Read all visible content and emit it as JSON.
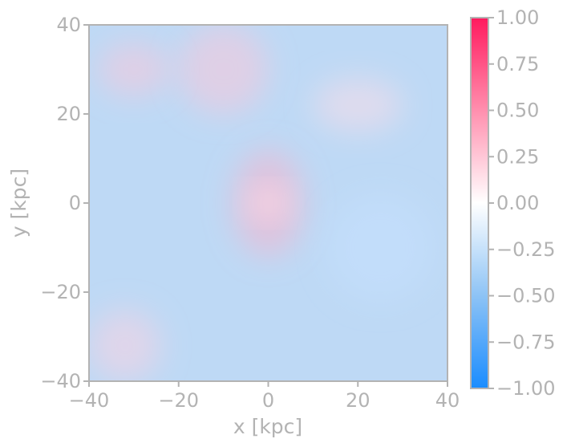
{
  "chart_data": {
    "type": "heatmap",
    "title": "",
    "xlabel": "x [kpc]",
    "ylabel": "y [kpc]",
    "xlim": [
      -40,
      40
    ],
    "ylim": [
      -40,
      40
    ],
    "x_ticks": [
      -40,
      -20,
      0,
      20,
      40
    ],
    "x_tick_labels": [
      "−40",
      "−20",
      "0",
      "20",
      "40"
    ],
    "y_ticks": [
      -40,
      -20,
      0,
      20,
      40
    ],
    "y_tick_labels": [
      "−40",
      "−20",
      "0",
      "20",
      "40"
    ],
    "grid": false,
    "colorbar": {
      "range": [
        -1.0,
        1.0
      ],
      "ticks": [
        1.0,
        0.75,
        0.5,
        0.25,
        0.0,
        -0.25,
        -0.5,
        -0.75,
        -1.0
      ],
      "tick_labels": [
        "1.00",
        "0.75",
        "0.50",
        "0.25",
        "0.00",
        "−0.25",
        "−0.50",
        "−0.75",
        "−1.00"
      ],
      "colors": {
        "max": "#ff1a5e",
        "mid": "#ffffff",
        "min": "#1a8cff"
      }
    },
    "features": [
      {
        "cx": 0,
        "cy": 0,
        "sx": 4,
        "sy": 3,
        "value": 0.0
      },
      {
        "cx": 0,
        "cy": 0,
        "sx": 8,
        "sy": 12,
        "value": 0.35
      },
      {
        "cx": -10,
        "cy": 30,
        "sx": 10,
        "sy": 10,
        "value": 0.25
      },
      {
        "cx": -30,
        "cy": 30,
        "sx": 8,
        "sy": 6,
        "value": 0.25
      },
      {
        "cx": 20,
        "cy": 22,
        "sx": 10,
        "sy": 6,
        "value": 0.15
      },
      {
        "cx": -32,
        "cy": -32,
        "sx": 8,
        "sy": 8,
        "value": 0.2
      },
      {
        "cx": 25,
        "cy": -10,
        "sx": 12,
        "sy": 12,
        "value": -0.25
      }
    ],
    "background_value": -0.3
  }
}
